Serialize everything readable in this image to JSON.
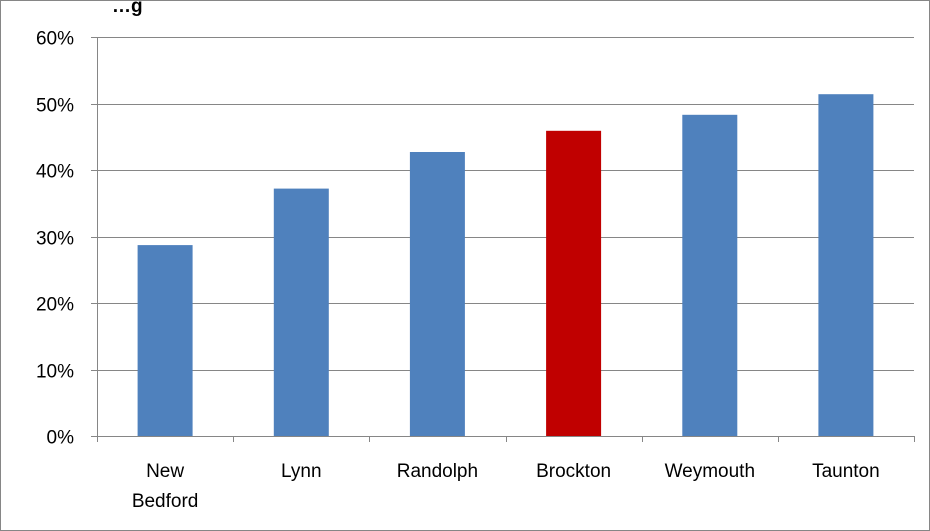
{
  "chart_data": {
    "type": "bar",
    "title": "…g",
    "categories": [
      "New Bedford",
      "Lynn",
      "Randolph",
      "Brockton",
      "Weymouth",
      "Taunton"
    ],
    "category_lines": [
      [
        "New",
        "Bedford"
      ],
      [
        "Lynn"
      ],
      [
        "Randolph"
      ],
      [
        "Brockton"
      ],
      [
        "Weymouth"
      ],
      [
        "Taunton"
      ]
    ],
    "values": [
      0.287,
      0.372,
      0.427,
      0.459,
      0.483,
      0.514
    ],
    "ylim": [
      0,
      0.6
    ],
    "yticks": [
      0,
      0.1,
      0.2,
      0.3,
      0.4,
      0.5,
      0.6
    ],
    "ytick_labels": [
      "0%",
      "10%",
      "20%",
      "30%",
      "40%",
      "50%",
      "60%"
    ],
    "xlabel": "",
    "ylabel": "",
    "grid": true,
    "legend": "none",
    "bar_color": "#4F81BD",
    "highlight_category": "Brockton",
    "highlight_color": "#C00000",
    "gridline_color": "#868686",
    "border_color": "#868686"
  }
}
